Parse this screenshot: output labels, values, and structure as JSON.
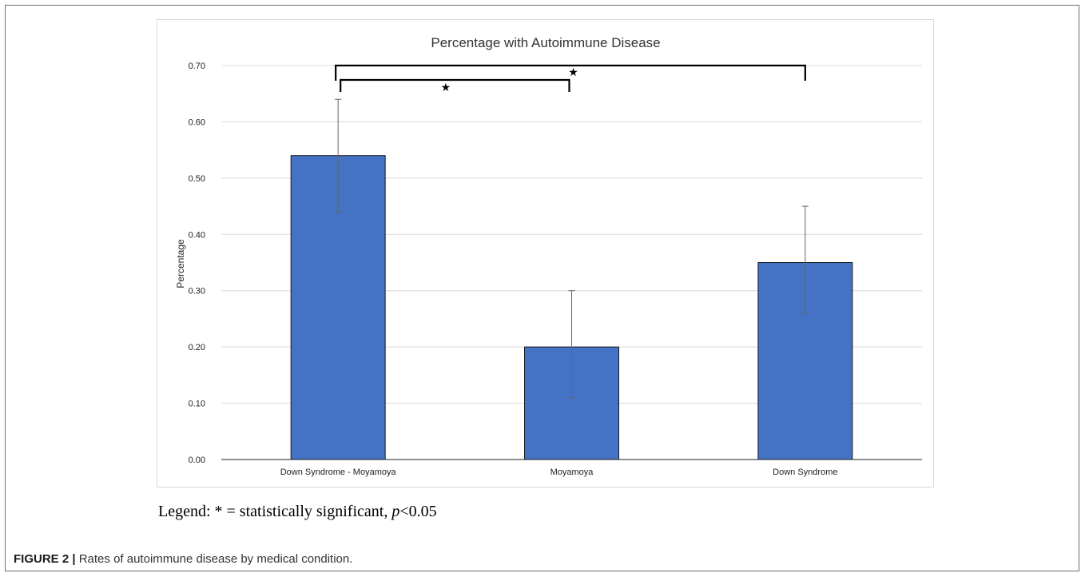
{
  "chart_data": {
    "type": "bar",
    "title": "Percentage with Autoimmune Disease",
    "xlabel": "",
    "ylabel": "Percentage",
    "categories": [
      "Down Syndrome - Moyamoya",
      "Moyamoya",
      "Down Syndrome"
    ],
    "values": [
      0.54,
      0.2,
      0.35
    ],
    "error_low": [
      0.44,
      0.11,
      0.26
    ],
    "error_high": [
      0.64,
      0.3,
      0.45
    ],
    "ylim": [
      0,
      0.7
    ],
    "yticks": [
      "0.00",
      "0.10",
      "0.20",
      "0.30",
      "0.40",
      "0.50",
      "0.60",
      "0.70"
    ],
    "grid": true,
    "bar_color": "#4472c4",
    "significance": [
      {
        "from": "Down Syndrome - Moyamoya",
        "to": "Moyamoya",
        "marker": "★"
      },
      {
        "from": "Down Syndrome - Moyamoya",
        "to": "Down Syndrome",
        "marker": "★"
      }
    ]
  },
  "legend_note": {
    "prefix": "Legend: * = statistically significant, ",
    "p": "p",
    "suffix": "<0.05"
  },
  "caption": {
    "label": "FIGURE 2 |",
    "text": " Rates of autoimmune disease by medical condition."
  }
}
